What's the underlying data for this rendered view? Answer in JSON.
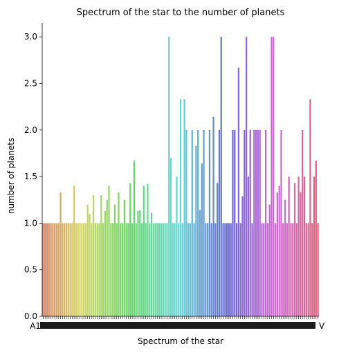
{
  "chart_data": {
    "type": "bar",
    "title": "Spectrum of the star to the number of planets",
    "xlabel": "Spectrum of the star",
    "ylabel": "number of planets",
    "ylim": [
      0,
      3.15
    ],
    "yticks": [
      "0.0",
      "0.5",
      "1.0",
      "1.5",
      "2.0",
      "2.5",
      "3.0"
    ],
    "grid": false,
    "legend": "none",
    "visible_xtick_labels": [
      "A1",
      "V"
    ],
    "values": [
      1,
      1,
      1,
      1,
      1,
      1,
      1,
      1,
      1,
      1.33,
      1,
      1,
      1,
      1,
      1,
      1,
      1.4,
      1,
      1,
      1,
      1,
      1,
      1,
      1.2,
      1.1,
      1,
      1.3,
      1,
      1,
      1,
      1.3,
      1,
      1.13,
      1.25,
      1.4,
      1,
      1,
      1.2,
      1,
      1.33,
      1,
      1,
      1.25,
      1,
      1,
      1.43,
      1,
      1.67,
      1,
      1.13,
      1.14,
      1,
      1.4,
      1,
      1.42,
      1,
      1.11,
      1,
      1,
      1,
      1,
      1,
      1,
      1,
      1,
      3.0,
      1.7,
      1,
      1,
      1.5,
      1,
      2.33,
      1,
      2.33,
      2.0,
      1,
      1,
      2.0,
      1,
      1.83,
      2.0,
      1.14,
      1.64,
      2.0,
      1,
      1,
      2.0,
      1,
      2.14,
      1,
      1.43,
      2.0,
      3.0,
      1,
      1,
      1,
      1,
      1,
      2.0,
      2.0,
      1,
      2.67,
      1,
      1.29,
      2.0,
      3.0,
      1.5,
      2.0,
      1,
      2.0,
      2.0,
      2.0,
      2.0,
      1,
      1,
      2.0,
      1,
      1.2,
      3.0,
      3.0,
      1,
      1.33,
      1.4,
      2.0,
      1,
      1.25,
      1,
      1.5,
      1,
      1,
      1.43,
      1,
      1.5,
      1.33,
      2.0,
      1.5,
      1,
      1,
      2.33,
      1,
      1.5,
      1.67,
      1
    ]
  }
}
